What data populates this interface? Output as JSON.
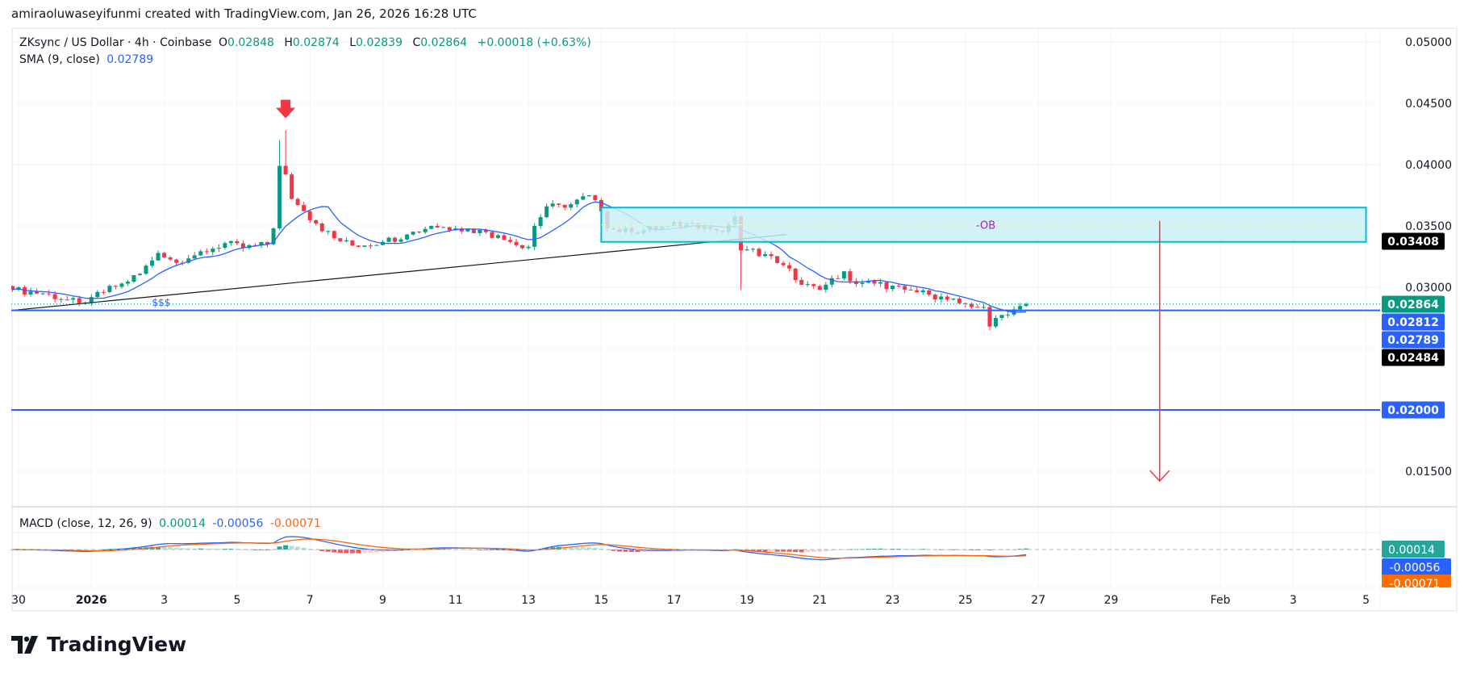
{
  "header": {
    "attribution": "amiraoluwaseyifunmi created with TradingView.com, Jan 26, 2026 16:28 UTC"
  },
  "legend": {
    "symbol": "ZKsync / US Dollar · 4h · Coinbase",
    "o_label": "O",
    "open": "0.02848",
    "h_label": "H",
    "high": "0.02874",
    "l_label": "L",
    "low": "0.02839",
    "c_label": "C",
    "close": "0.02864",
    "change": "+0.00018 (+0.63%)",
    "sma_label": "SMA (9, close)",
    "sma_value": "0.02789"
  },
  "macd_legend": {
    "label": "MACD (close, 12, 26, 9)",
    "hist": "0.00014",
    "macd": "-0.00056",
    "signal": "-0.00071"
  },
  "colors": {
    "up": "#089981",
    "down": "#f23645",
    "sma": "#2962ff",
    "macd": "#2962ff",
    "signal": "#f7690a",
    "zone_fill": "#c9f0f4",
    "zone_border": "#00bcd4",
    "hline": "#2962ff",
    "arrow": "#f23645",
    "ob_text": "#9c27b0"
  },
  "chart_data": {
    "type": "candlestick",
    "interval": "4h",
    "price_ticks": [
      0.05,
      0.045,
      0.04,
      0.035,
      0.03,
      0.015
    ],
    "ylim": [
      0.0095,
      0.0514
    ],
    "grid": true,
    "price_labels": [
      {
        "text": "0.03408",
        "value": 0.03408,
        "bg": "#000000"
      },
      {
        "text": "0.02864",
        "value": 0.02864,
        "bg": "#089981"
      },
      {
        "text": "0.02812",
        "value": 0.02812,
        "bg": "#2962ff"
      },
      {
        "text": "0.02789",
        "value": 0.02789,
        "bg": "#2962ff"
      },
      {
        "text": "0.02484",
        "value": 0.02484,
        "bg": "#000000"
      },
      {
        "text": "0.02000",
        "value": 0.02,
        "bg": "#2962ff"
      }
    ],
    "date_ticks": [
      {
        "label": "30",
        "date": "2025-12-30"
      },
      {
        "label": "2026",
        "date": "2026-01-01",
        "bold": true
      },
      {
        "label": "3",
        "date": "2026-01-03"
      },
      {
        "label": "5",
        "date": "2026-01-05"
      },
      {
        "label": "7",
        "date": "2026-01-07"
      },
      {
        "label": "9",
        "date": "2026-01-09"
      },
      {
        "label": "11",
        "date": "2026-01-11"
      },
      {
        "label": "13",
        "date": "2026-01-13"
      },
      {
        "label": "15",
        "date": "2026-01-15"
      },
      {
        "label": "17",
        "date": "2026-01-17"
      },
      {
        "label": "19",
        "date": "2026-01-19"
      },
      {
        "label": "21",
        "date": "2026-01-21"
      },
      {
        "label": "23",
        "date": "2026-01-23"
      },
      {
        "label": "25",
        "date": "2026-01-25"
      },
      {
        "label": "27",
        "date": "2026-01-27"
      },
      {
        "label": "29",
        "date": "2026-01-29"
      },
      {
        "label": "Feb",
        "date": "2026-02-01"
      },
      {
        "label": "3",
        "date": "2026-02-03"
      },
      {
        "label": "5",
        "date": "2026-02-05"
      }
    ],
    "close_path": [
      {
        "t": "2025-12-29T20:00",
        "c": 0.0298
      },
      {
        "t": "2025-12-30T16:00",
        "c": 0.0295
      },
      {
        "t": "2025-12-31T16:00",
        "c": 0.0287
      },
      {
        "t": "2026-01-01T00:00",
        "c": 0.0292
      },
      {
        "t": "2026-01-01T20:00",
        "c": 0.0303
      },
      {
        "t": "2026-01-02T08:00",
        "c": 0.0311
      },
      {
        "t": "2026-01-02T20:00",
        "c": 0.0328
      },
      {
        "t": "2026-01-03T08:00",
        "c": 0.032
      },
      {
        "t": "2026-01-03T20:00",
        "c": 0.0326
      },
      {
        "t": "2026-01-04T16:00",
        "c": 0.0336
      },
      {
        "t": "2026-01-05T04:00",
        "c": 0.0332
      },
      {
        "t": "2026-01-05T20:00",
        "c": 0.0335
      },
      {
        "t": "2026-01-06T00:00",
        "c": 0.0348
      },
      {
        "t": "2026-01-06T04:00",
        "c": 0.0399,
        "h": 0.042
      },
      {
        "t": "2026-01-06T08:00",
        "c": 0.0392,
        "h": 0.0428
      },
      {
        "t": "2026-01-06T12:00",
        "c": 0.0372
      },
      {
        "t": "2026-01-06T20:00",
        "c": 0.0362
      },
      {
        "t": "2026-01-07T04:00",
        "c": 0.0352
      },
      {
        "t": "2026-01-07T16:00",
        "c": 0.034
      },
      {
        "t": "2026-01-08T04:00",
        "c": 0.0334
      },
      {
        "t": "2026-01-09T00:00",
        "c": 0.0337
      },
      {
        "t": "2026-01-09T16:00",
        "c": 0.0343
      },
      {
        "t": "2026-01-10T08:00",
        "c": 0.035
      },
      {
        "t": "2026-01-11T00:00",
        "c": 0.0348
      },
      {
        "t": "2026-01-11T20:00",
        "c": 0.0345
      },
      {
        "t": "2026-01-12T12:00",
        "c": 0.0337
      },
      {
        "t": "2026-01-13T00:00",
        "c": 0.0333
      },
      {
        "t": "2026-01-13T04:00",
        "c": 0.035
      },
      {
        "t": "2026-01-13T12:00",
        "c": 0.0366
      },
      {
        "t": "2026-01-14T00:00",
        "c": 0.0365
      },
      {
        "t": "2026-01-14T16:00",
        "c": 0.0375
      },
      {
        "t": "2026-01-15T00:00",
        "c": 0.0362
      },
      {
        "t": "2026-01-15T04:00",
        "c": 0.0348
      },
      {
        "t": "2026-01-15T20:00",
        "c": 0.0345
      },
      {
        "t": "2026-01-16T20:00",
        "c": 0.035
      },
      {
        "t": "2026-01-17T12:00",
        "c": 0.0352
      },
      {
        "t": "2026-01-18T08:00",
        "c": 0.0345
      },
      {
        "t": "2026-01-18T16:00",
        "c": 0.0358,
        "h": 0.0362
      },
      {
        "t": "2026-01-18T20:00",
        "c": 0.033,
        "l": 0.0298
      },
      {
        "t": "2026-01-19T12:00",
        "c": 0.0327
      },
      {
        "t": "2026-01-20T00:00",
        "c": 0.0318
      },
      {
        "t": "2026-01-20T12:00",
        "c": 0.0302
      },
      {
        "t": "2026-01-21T00:00",
        "c": 0.0298
      },
      {
        "t": "2026-01-21T16:00",
        "c": 0.0313
      },
      {
        "t": "2026-01-21T20:00",
        "c": 0.0305
      },
      {
        "t": "2026-01-22T12:00",
        "c": 0.0303
      },
      {
        "t": "2026-01-23T08:00",
        "c": 0.0298
      },
      {
        "t": "2026-01-24T00:00",
        "c": 0.0294
      },
      {
        "t": "2026-01-24T20:00",
        "c": 0.0287
      },
      {
        "t": "2026-01-25T12:00",
        "c": 0.0284
      },
      {
        "t": "2026-01-25T16:00",
        "c": 0.0268,
        "l": 0.0265
      },
      {
        "t": "2026-01-25T20:00",
        "c": 0.0275
      },
      {
        "t": "2026-01-26T08:00",
        "c": 0.0282
      },
      {
        "t": "2026-01-26T12:00",
        "c": 0.02848
      },
      {
        "t": "2026-01-26T16:00",
        "c": 0.02864,
        "h": 0.02874,
        "l": 0.02839
      }
    ],
    "sma_period": 9,
    "macd_params": [
      12,
      26,
      9
    ],
    "drawings": {
      "trendline": {
        "from": {
          "t": "2025-12-29T20:00",
          "p": 0.02812
        },
        "to": {
          "t": "2026-01-20T02:00",
          "p": 0.0343
        }
      },
      "horizontal_lines": [
        0.02812,
        0.02
      ],
      "liquidity_label": "$$$",
      "liquidity_label_at": {
        "t": "2026-01-02T16:00",
        "p": 0.0285
      },
      "order_block": {
        "label": "-OB",
        "from": "2026-01-15T00:00",
        "to": "2026-02-05T00:00",
        "top": 0.0365,
        "bottom": 0.0337
      },
      "peak_marker": {
        "t": "2026-01-06T08:00",
        "p": 0.0445
      },
      "target_arrow": {
        "t": "2026-01-30T08:00",
        "from": 0.0354,
        "to": 0.0142
      }
    }
  },
  "branding": {
    "logo_text": "TradingView"
  }
}
